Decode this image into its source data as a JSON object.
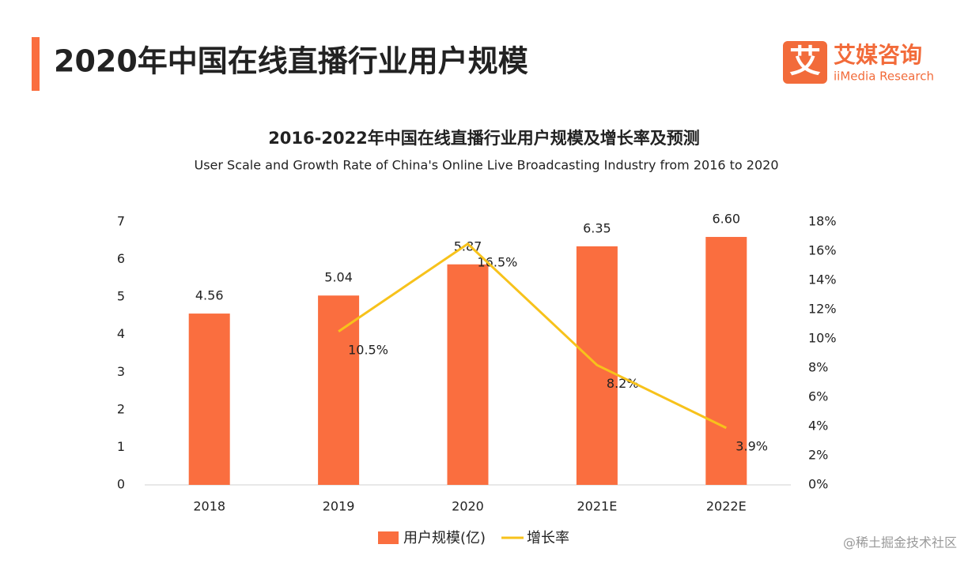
{
  "header": {
    "title": "2020年中国在线直播行业用户规模",
    "logo": "艾",
    "brand": "艾媒咨询",
    "brand_en": "iiMedia Research"
  },
  "watermark": "@稀土掘金技术社区",
  "chart_data": {
    "type": "bar",
    "title": "2016-2022年中国在线直播行业用户规模及增长率及预测",
    "subtitle": "User Scale and Growth Rate of China's Online Live Broadcasting Industry from 2016 to 2020",
    "categories": [
      "2018",
      "2019",
      "2020",
      "2021E",
      "2022E"
    ],
    "series": [
      {
        "name": "用户规模(亿)",
        "type": "bar",
        "color": "#fa6e3f",
        "values": [
          4.56,
          5.04,
          5.87,
          6.35,
          6.6
        ],
        "value_labels": [
          "4.56",
          "5.04",
          "5.87",
          "6.35",
          "6.60"
        ]
      },
      {
        "name": "增长率",
        "type": "line",
        "axis": "y2",
        "color": "#f7c21b",
        "values": [
          null,
          10.5,
          16.5,
          8.2,
          3.9
        ],
        "value_labels": [
          null,
          "10.5%",
          "16.5%",
          "8.2%",
          "3.9%"
        ]
      }
    ],
    "ylim": [
      0,
      7
    ],
    "yticks": [
      0,
      1,
      2,
      3,
      4,
      5,
      6,
      7
    ],
    "y2lim": [
      0,
      18
    ],
    "y2ticks": [
      {
        "value": 0,
        "label": "0%"
      },
      {
        "value": 2,
        "label": "2%"
      },
      {
        "value": 4,
        "label": "4%"
      },
      {
        "value": 6,
        "label": "6%"
      },
      {
        "value": 8,
        "label": "8%"
      },
      {
        "value": 10,
        "label": "10%"
      },
      {
        "value": 12,
        "label": "12%"
      },
      {
        "value": 14,
        "label": "14%"
      },
      {
        "value": 16,
        "label": "16%"
      },
      {
        "value": 18,
        "label": "18%"
      }
    ],
    "grid": false,
    "legend": "bottom"
  }
}
